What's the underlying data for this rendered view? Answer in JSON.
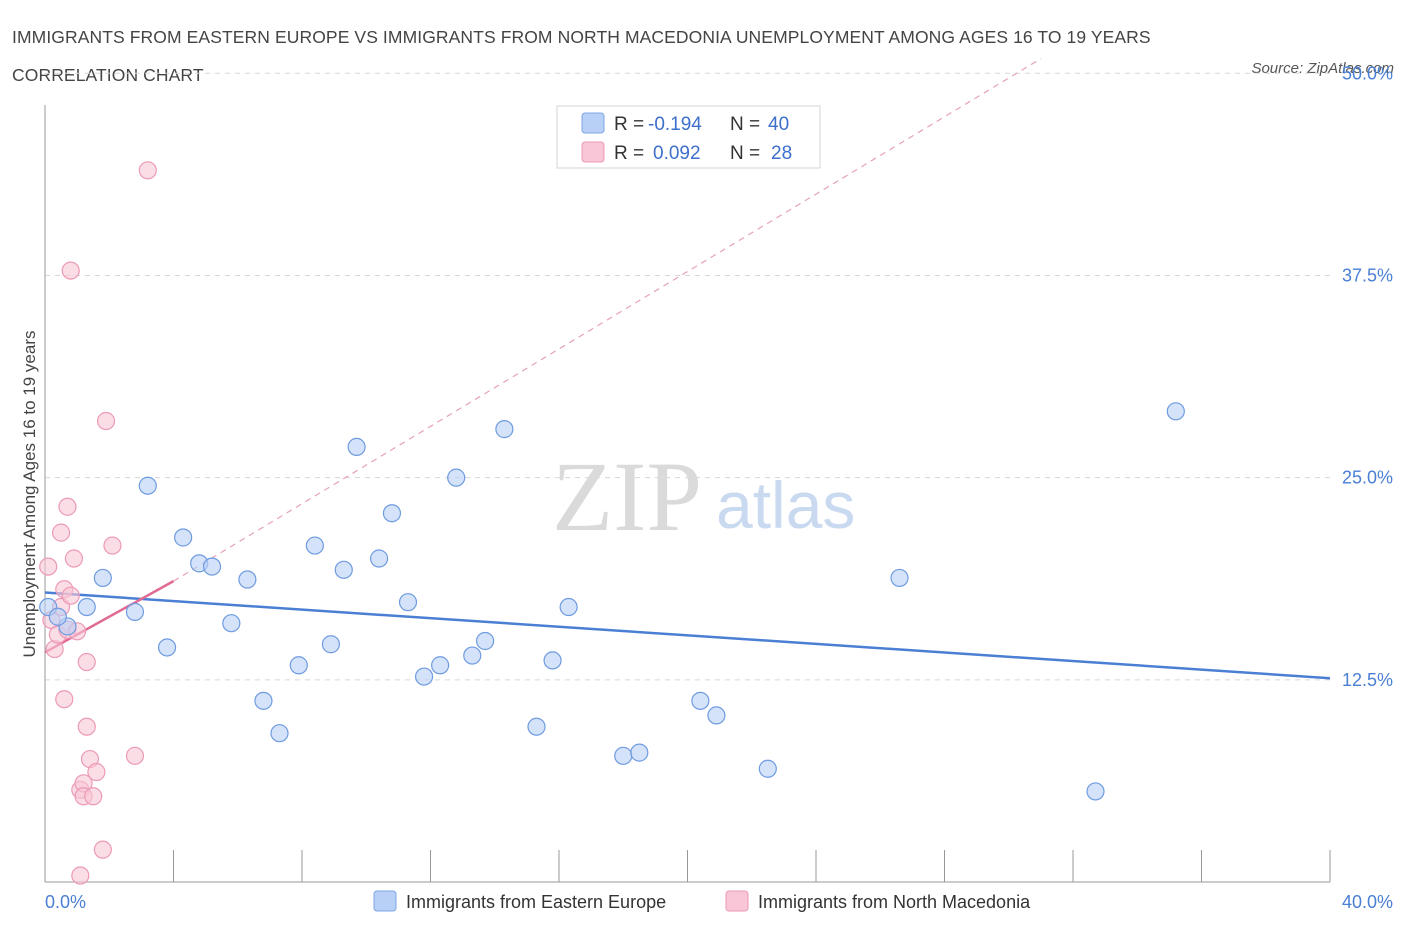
{
  "title": "IMMIGRANTS FROM EASTERN EUROPE VS IMMIGRANTS FROM NORTH MACEDONIA UNEMPLOYMENT AMONG AGES 16 TO 19 YEARS CORRELATION CHART",
  "source": "Source: ZipAtlas.com",
  "watermark": {
    "zip": "ZIP",
    "atlas": "atlas"
  },
  "colors": {
    "blue": "#4a7fd4",
    "blue_fill": "#b8d0f5",
    "pink": "#e06a93",
    "pink_fill": "#f8c6d6",
    "grid": "#d7d7d7"
  },
  "stats_legend": [
    {
      "r_label": "R =",
      "r_value": "-0.194",
      "n_label": "N =",
      "n_value": "40"
    },
    {
      "r_label": "R =",
      "r_value": "0.092",
      "n_label": "N =",
      "n_value": "28"
    }
  ],
  "chart_data": {
    "type": "scatter",
    "title": "IMMIGRANTS FROM EASTERN EUROPE VS IMMIGRANTS FROM NORTH MACEDONIA UNEMPLOYMENT AMONG AGES 16 TO 19 YEARS CORRELATION CHART",
    "xlabel": "",
    "ylabel": "Unemployment Among Ages 16 to 19 years",
    "xlim": [
      0,
      40
    ],
    "ylim": [
      0,
      51.5
    ],
    "x_tick_labels": [
      "0.0%",
      "40.0%"
    ],
    "y_ticks": [
      12.5,
      25.0,
      37.5,
      50.0
    ],
    "y_tick_labels": [
      "12.5%",
      "25.0%",
      "37.5%",
      "50.0%"
    ],
    "grid": true,
    "legend_position": "bottom",
    "series": [
      {
        "name": "Immigrants from Eastern Europe",
        "color": "#4a7fd4",
        "trend": {
          "x0": 0,
          "y0": 17.9,
          "x1": 40,
          "y1": 12.6,
          "style": "solid"
        },
        "points": [
          [
            0.1,
            17.0
          ],
          [
            0.7,
            15.8
          ],
          [
            1.3,
            17.0
          ],
          [
            1.8,
            18.8
          ],
          [
            2.8,
            16.7
          ],
          [
            3.2,
            24.5
          ],
          [
            3.8,
            14.5
          ],
          [
            4.3,
            21.3
          ],
          [
            4.8,
            19.7
          ],
          [
            5.2,
            19.5
          ],
          [
            5.8,
            16.0
          ],
          [
            6.3,
            18.7
          ],
          [
            6.8,
            11.2
          ],
          [
            7.3,
            9.2
          ],
          [
            7.9,
            13.4
          ],
          [
            8.4,
            20.8
          ],
          [
            8.9,
            14.7
          ],
          [
            9.3,
            19.3
          ],
          [
            9.7,
            26.9
          ],
          [
            10.4,
            20.0
          ],
          [
            10.8,
            22.8
          ],
          [
            11.3,
            17.3
          ],
          [
            11.8,
            12.7
          ],
          [
            12.3,
            13.4
          ],
          [
            12.8,
            25.0
          ],
          [
            13.3,
            14.0
          ],
          [
            13.7,
            14.9
          ],
          [
            14.3,
            28.0
          ],
          [
            15.3,
            9.6
          ],
          [
            15.8,
            13.7
          ],
          [
            16.3,
            17.0
          ],
          [
            18.0,
            7.8
          ],
          [
            18.5,
            8.0
          ],
          [
            20.4,
            11.2
          ],
          [
            20.9,
            10.3
          ],
          [
            22.5,
            7.0
          ],
          [
            26.6,
            18.8
          ],
          [
            32.7,
            5.6
          ],
          [
            35.2,
            29.1
          ],
          [
            0.4,
            16.4
          ]
        ]
      },
      {
        "name": "Immigrants from North Macedonia",
        "color": "#e06a93",
        "trend": {
          "x0": 0,
          "y0": 14.2,
          "x1": 4.0,
          "y1": 18.6,
          "style": "solid",
          "extended": {
            "x1": 31.0,
            "y1": 50.9,
            "style": "dashed"
          }
        },
        "points": [
          [
            0.1,
            19.5
          ],
          [
            0.2,
            16.2
          ],
          [
            0.3,
            14.4
          ],
          [
            0.4,
            15.3
          ],
          [
            0.5,
            17.0
          ],
          [
            0.5,
            21.6
          ],
          [
            0.6,
            18.1
          ],
          [
            0.6,
            11.3
          ],
          [
            0.7,
            23.2
          ],
          [
            0.7,
            15.6
          ],
          [
            0.8,
            37.8
          ],
          [
            0.8,
            17.7
          ],
          [
            0.9,
            20.0
          ],
          [
            1.0,
            15.5
          ],
          [
            1.1,
            5.7
          ],
          [
            1.2,
            6.1
          ],
          [
            1.2,
            5.3
          ],
          [
            1.3,
            13.6
          ],
          [
            1.3,
            9.6
          ],
          [
            1.4,
            7.6
          ],
          [
            1.5,
            5.3
          ],
          [
            1.6,
            6.8
          ],
          [
            1.8,
            2.0
          ],
          [
            1.9,
            28.5
          ],
          [
            2.1,
            20.8
          ],
          [
            2.8,
            7.8
          ],
          [
            3.2,
            44.0
          ],
          [
            1.1,
            0.4
          ]
        ]
      }
    ]
  },
  "bottom_legend": [
    {
      "label": "Immigrants from Eastern Europe"
    },
    {
      "label": "Immigrants from North Macedonia"
    }
  ]
}
